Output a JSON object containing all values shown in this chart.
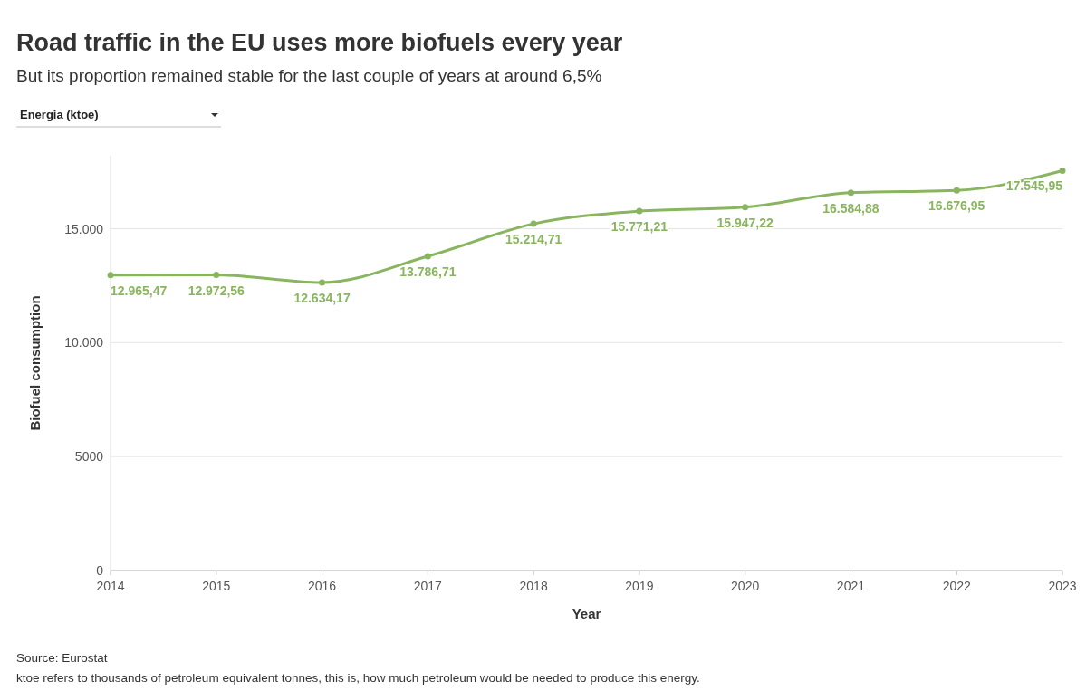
{
  "chart_data": {
    "type": "line",
    "title": "Road traffic in the EU uses more biofuels every year",
    "subtitle": "But its proportion remained stable for the last couple of years at around 6,5%",
    "xlabel": "Year",
    "ylabel": "Biofuel consumption",
    "x": [
      2014,
      2015,
      2016,
      2017,
      2018,
      2019,
      2020,
      2021,
      2022,
      2023
    ],
    "series": [
      {
        "color": "#8ab560",
        "values": [
          12965.47,
          12972.56,
          12634.17,
          13786.71,
          15214.71,
          15771.21,
          15947.22,
          16584.88,
          16676.95,
          17545.95
        ],
        "value_labels": [
          "12.965,47",
          "12.972,56",
          "12.634,17",
          "13.786,71",
          "15.214,71",
          "15.771,21",
          "15.947,22",
          "16.584,88",
          "16.676,95",
          "17.545,95"
        ]
      }
    ],
    "xlim": [
      2014,
      2023
    ],
    "xticks": [
      2014,
      2015,
      2016,
      2017,
      2018,
      2019,
      2020,
      2021,
      2022,
      2023
    ],
    "ylim": [
      0,
      18200
    ],
    "yticks": [
      0,
      5000,
      {
        "value": 10000,
        "label": "10.000"
      },
      {
        "value": 15000,
        "label": "15.000"
      }
    ],
    "grid": "y",
    "marker": "circle",
    "line_style": "solid",
    "annotations": [
      "Energia (ktoe)",
      "Source: Eurostat",
      "ktoe refers to thousands of petroleum equivalent tonnes, this is, how much petroleum would be needed to produce this energy."
    ]
  }
}
